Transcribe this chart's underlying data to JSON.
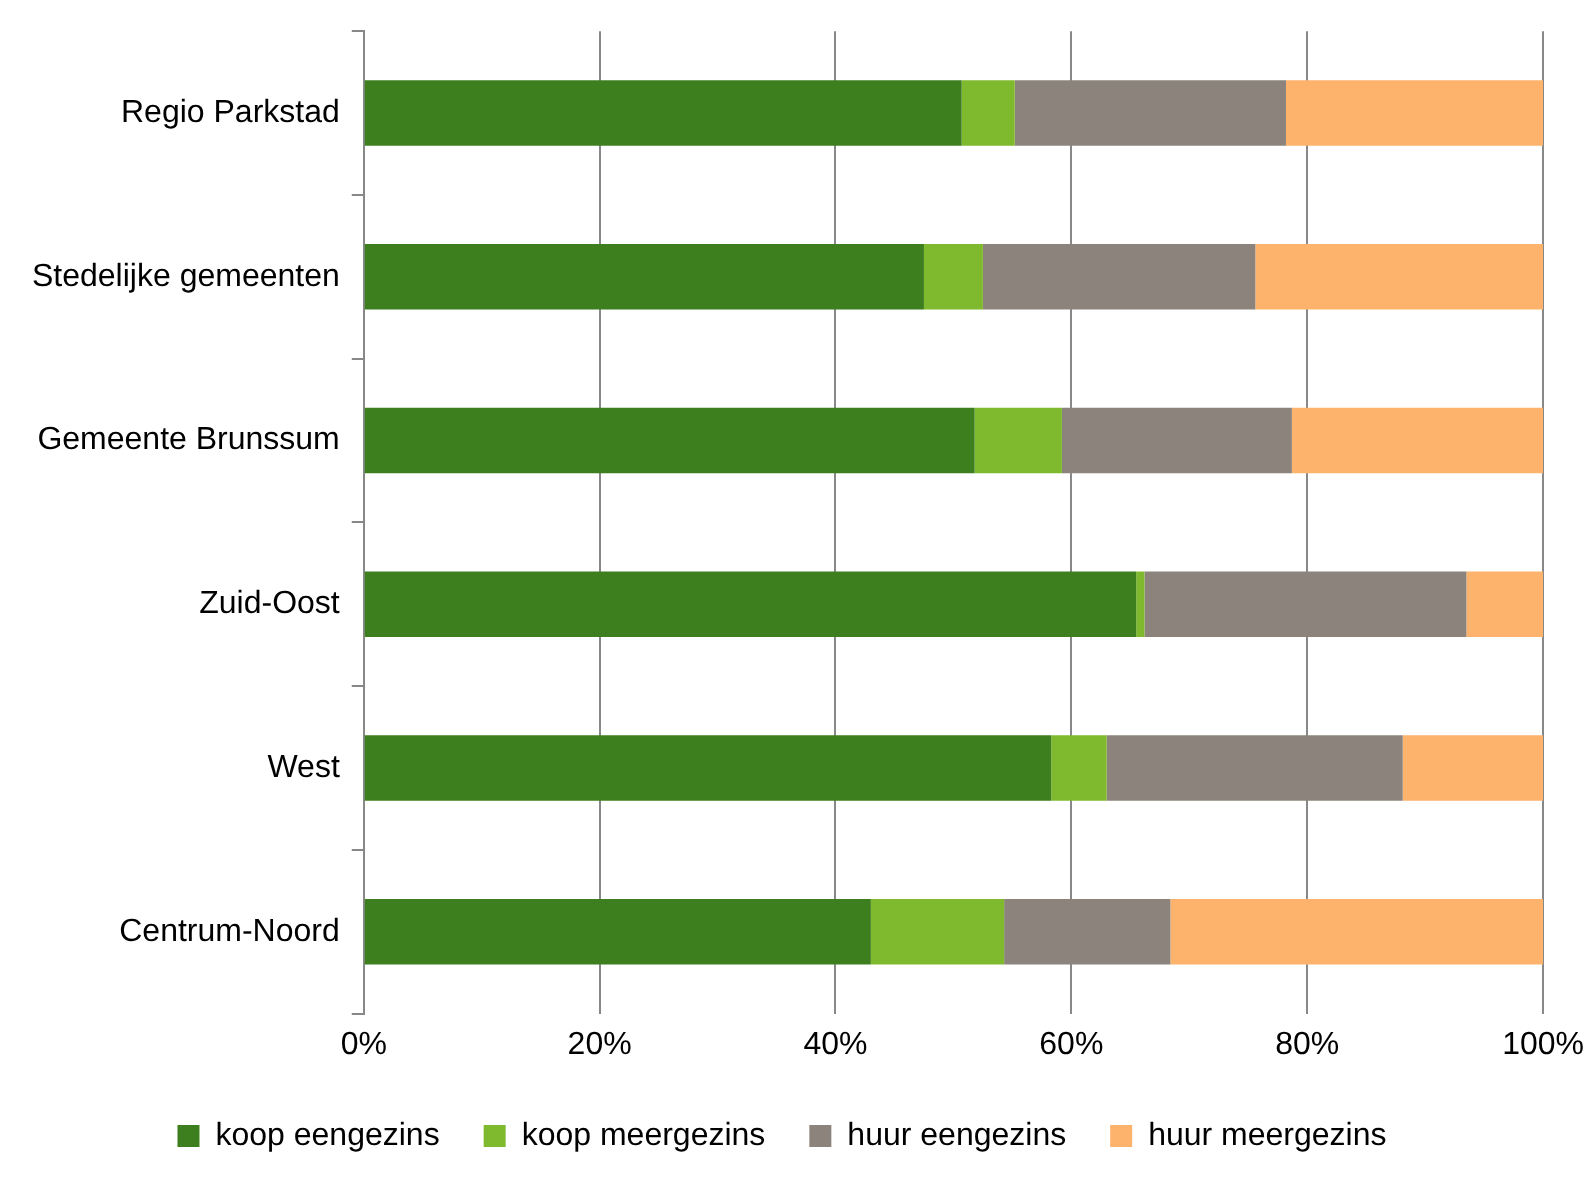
{
  "chart_data": {
    "type": "bar",
    "orientation": "horizontal",
    "stacked": true,
    "categories": [
      "Regio Parkstad",
      "Stedelijke gemeenten",
      "Gemeente Brunssum",
      "Zuid-Oost",
      "West",
      "Centrum-Noord"
    ],
    "series": [
      {
        "name": "koop eengezins",
        "color": "#3d7f1f",
        "values": [
          50.7,
          47.5,
          51.8,
          65.5,
          58.3,
          43.0
        ]
      },
      {
        "name": "koop meergezins",
        "color": "#7fba2e",
        "values": [
          4.5,
          5.0,
          7.4,
          0.7,
          4.7,
          11.3
        ]
      },
      {
        "name": "huur eengezins",
        "color": "#8c847c",
        "values": [
          23.0,
          23.1,
          19.5,
          27.3,
          25.1,
          14.1
        ]
      },
      {
        "name": "huur meergezins",
        "color": "#fdb36b",
        "values": [
          21.8,
          24.4,
          21.3,
          6.5,
          11.9,
          31.6
        ]
      }
    ],
    "xlim": [
      0,
      100
    ],
    "xticks": [
      {
        "value": 0,
        "label": "0%"
      },
      {
        "value": 20,
        "label": "20%"
      },
      {
        "value": 40,
        "label": "40%"
      },
      {
        "value": 60,
        "label": "60%"
      },
      {
        "value": 80,
        "label": "80%"
      },
      {
        "value": 100,
        "label": "100%"
      }
    ],
    "grid": "x",
    "legend": "bottom"
  }
}
